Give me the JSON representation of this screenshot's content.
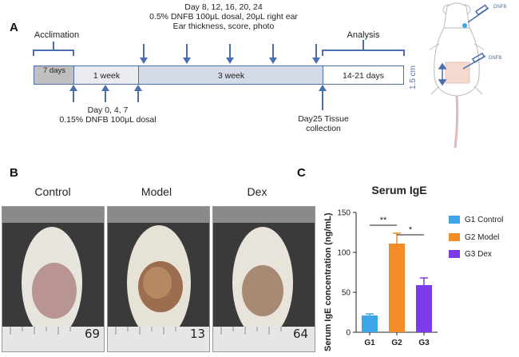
{
  "panel_a": {
    "letter": "A",
    "acclimation_label": "Acclimation",
    "segments": {
      "seg1": "7 days",
      "seg2": "1 week",
      "seg3": "3 week",
      "seg4": "14-21 days"
    },
    "analysis_label": "Analysis",
    "top_annotation": [
      "Day 8, 12, 16, 20, 24",
      "0.5% DNFB 100μL dosal, 20μL right ear",
      "Ear thickness, score, photo"
    ],
    "bottom_annotation": [
      "Day 0, 4, 7",
      "0.15% DNFB 100μL dosal"
    ],
    "tissue_annotation": [
      "Day25 Tissue",
      "collection"
    ],
    "mouse_measure": "1.5 cm",
    "mouse_label_top": "DNFB",
    "mouse_label_mid": "DNFB",
    "colors": {
      "seg1": "#bfbfbf",
      "seg2": "#e9ebee",
      "seg3": "#d4dbe6",
      "seg4": "#ffffff",
      "arrow": "#4a6fb0"
    }
  },
  "panel_b": {
    "letter": "B",
    "captions": [
      "Control",
      "Model",
      "Dex"
    ],
    "ruler_labels": [
      "69",
      "13",
      "64"
    ]
  },
  "panel_c": {
    "letter": "C",
    "significance": [
      "**",
      "*"
    ]
  },
  "chart_data": {
    "type": "bar",
    "title": "Serum IgE",
    "xlabel": "",
    "ylabel": "Serum IgE concentration (ng/mL)",
    "categories": [
      "G1",
      "G2",
      "G3"
    ],
    "values": [
      21,
      111,
      59
    ],
    "errors": [
      2,
      13,
      9
    ],
    "series_names": [
      "G1 Control",
      "G2 Model",
      "G3 Dex"
    ],
    "colors": [
      "#3da5e8",
      "#f28c28",
      "#7c3aed"
    ],
    "ylim": [
      0,
      150
    ],
    "yticks": [
      0,
      50,
      100,
      150
    ],
    "legend": "right"
  }
}
